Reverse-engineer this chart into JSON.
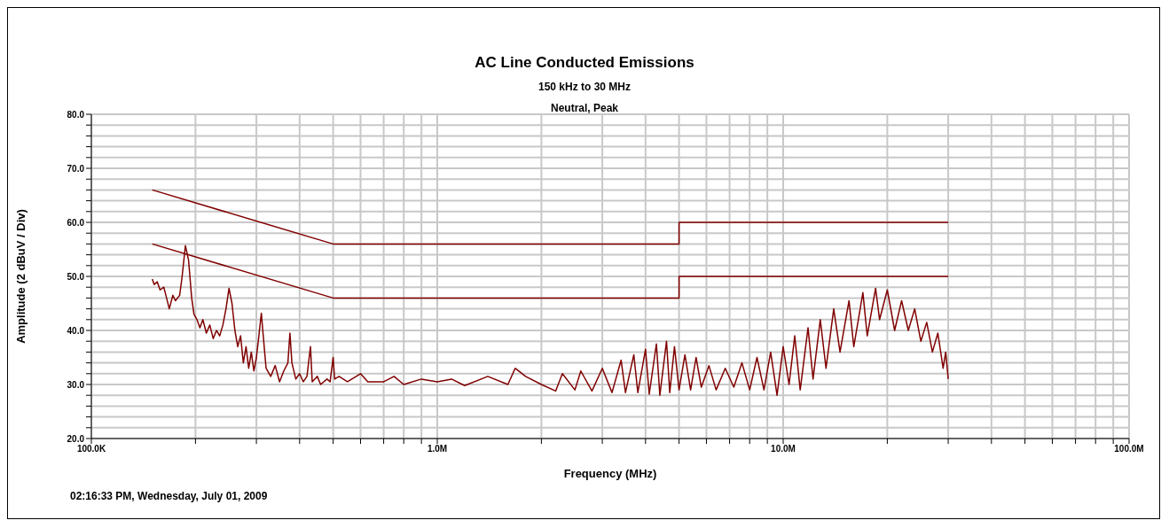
{
  "chart_data": {
    "type": "line",
    "title": "AC Line Conducted Emissions",
    "subtitle": "150 kHz to 30 MHz",
    "xlabel": "Frequency (MHz)",
    "ylabel": "Amplitude (2 dBuV / Div)",
    "annotations": [
      "Neutral, Peak",
      "02:16:33 PM, Wednesday, July 01, 2009"
    ],
    "log": "x",
    "grid": true,
    "marker": "none",
    "line_style": "solid",
    "xlim": [
      100000,
      100000000
    ],
    "ylim": [
      20,
      80
    ],
    "xticks": [
      {
        "value": 100000,
        "label": "100.0K"
      },
      {
        "value": 200000,
        "label": null
      },
      {
        "value": 300000,
        "label": null
      },
      {
        "value": 400000,
        "label": null
      },
      {
        "value": 500000,
        "label": null
      },
      {
        "value": 600000,
        "label": null
      },
      {
        "value": 700000,
        "label": null
      },
      {
        "value": 800000,
        "label": null
      },
      {
        "value": 900000,
        "label": null
      },
      {
        "value": 1000000,
        "label": "1.0M"
      },
      {
        "value": 2000000,
        "label": null
      },
      {
        "value": 3000000,
        "label": null
      },
      {
        "value": 4000000,
        "label": null
      },
      {
        "value": 5000000,
        "label": null
      },
      {
        "value": 6000000,
        "label": null
      },
      {
        "value": 7000000,
        "label": null
      },
      {
        "value": 8000000,
        "label": null
      },
      {
        "value": 9000000,
        "label": null
      },
      {
        "value": 10000000,
        "label": "10.0M"
      },
      {
        "value": 20000000,
        "label": null
      },
      {
        "value": 30000000,
        "label": null
      },
      {
        "value": 40000000,
        "label": null
      },
      {
        "value": 50000000,
        "label": null
      },
      {
        "value": 60000000,
        "label": null
      },
      {
        "value": 70000000,
        "label": null
      },
      {
        "value": 80000000,
        "label": null
      },
      {
        "value": 90000000,
        "label": null
      },
      {
        "value": 100000000,
        "label": "100.0M"
      }
    ],
    "yticks": [
      {
        "value": 20,
        "label": "20.0"
      },
      {
        "value": 22,
        "label": null
      },
      {
        "value": 24,
        "label": null
      },
      {
        "value": 26,
        "label": null
      },
      {
        "value": 28,
        "label": null
      },
      {
        "value": 30,
        "label": "30.0"
      },
      {
        "value": 32,
        "label": null
      },
      {
        "value": 34,
        "label": null
      },
      {
        "value": 36,
        "label": null
      },
      {
        "value": 38,
        "label": null
      },
      {
        "value": 40,
        "label": "40.0"
      },
      {
        "value": 42,
        "label": null
      },
      {
        "value": 44,
        "label": null
      },
      {
        "value": 46,
        "label": null
      },
      {
        "value": 48,
        "label": null
      },
      {
        "value": 50,
        "label": "50.0"
      },
      {
        "value": 52,
        "label": null
      },
      {
        "value": 54,
        "label": null
      },
      {
        "value": 56,
        "label": null
      },
      {
        "value": 58,
        "label": null
      },
      {
        "value": 60,
        "label": "60.0"
      },
      {
        "value": 62,
        "label": null
      },
      {
        "value": 64,
        "label": null
      },
      {
        "value": 66,
        "label": null
      },
      {
        "value": 68,
        "label": null
      },
      {
        "value": 70,
        "label": "70.0"
      },
      {
        "value": 72,
        "label": null
      },
      {
        "value": 74,
        "label": null
      },
      {
        "value": 76,
        "label": null
      },
      {
        "value": 78,
        "label": null
      },
      {
        "value": 80,
        "label": "80.0"
      }
    ],
    "series": [
      {
        "color": "#800000",
        "x": [
          150000,
          500000,
          5000000,
          5000000,
          30000000
        ],
        "values": [
          66,
          56,
          56,
          60,
          60
        ]
      },
      {
        "color": "#800000",
        "x": [
          150000,
          500000,
          5000000,
          5000000,
          30000000
        ],
        "values": [
          56,
          46,
          46,
          50,
          50
        ]
      },
      {
        "color": "#800000",
        "x": [
          150000,
          152000,
          155000,
          158000,
          162000,
          165000,
          168000,
          172000,
          175000,
          180000,
          183000,
          187000,
          191000,
          195000,
          198000,
          202000,
          206000,
          210000,
          215000,
          220000,
          225000,
          230000,
          235000,
          240000,
          245000,
          250000,
          255000,
          260000,
          265000,
          270000,
          275000,
          280000,
          285000,
          290000,
          295000,
          300000,
          305000,
          310000,
          315000,
          320000,
          330000,
          340000,
          350000,
          360000,
          370000,
          375000,
          380000,
          390000,
          400000,
          410000,
          420000,
          430000,
          435000,
          450000,
          460000,
          480000,
          490000,
          500000,
          505000,
          520000,
          550000,
          600000,
          630000,
          700000,
          750000,
          800000,
          900000,
          1000000,
          1100000,
          1200000,
          1400000,
          1600000,
          1680000,
          1800000,
          2000000,
          2200000,
          2300000,
          2500000,
          2600000,
          2800000,
          3000000,
          3200000,
          3400000,
          3500000,
          3700000,
          3800000,
          4000000,
          4100000,
          4300000,
          4400000,
          4600000,
          4700000,
          4850000,
          5000000,
          5200000,
          5400000,
          5600000,
          5800000,
          6100000,
          6400000,
          6800000,
          7200000,
          7600000,
          8000000,
          8400000,
          8800000,
          9200000,
          9600000,
          10000000,
          10400000,
          10800000,
          11200000,
          11800000,
          12200000,
          12800000,
          13300000,
          14000000,
          14600000,
          15500000,
          16000000,
          17000000,
          17500000,
          18500000,
          19000000,
          20000000,
          21000000,
          22000000,
          23000000,
          24000000,
          25000000,
          26000000,
          27000000,
          28000000,
          29000000,
          29500000,
          30000000
        ],
        "values": [
          49.5,
          48.5,
          49,
          47.5,
          48,
          46,
          44,
          46.5,
          45.5,
          46.5,
          50,
          55.7,
          53,
          46,
          43,
          42,
          40.5,
          42,
          39.5,
          41,
          38.5,
          40,
          39,
          41,
          44,
          47.8,
          45,
          40,
          37,
          39,
          34,
          37,
          33,
          36,
          32.5,
          35,
          39,
          43.2,
          38,
          33,
          31.5,
          33.5,
          30.5,
          32.5,
          34,
          39.5,
          34,
          31,
          32,
          30.5,
          31.5,
          37,
          30.5,
          31.5,
          30,
          31,
          30.5,
          35,
          31,
          31.5,
          30.5,
          32,
          30.5,
          30.5,
          31.5,
          30,
          31,
          30.5,
          31,
          29.8,
          31.5,
          30,
          33,
          31.5,
          30,
          28.8,
          32,
          29,
          32.5,
          28.8,
          33,
          28.5,
          34.5,
          28.5,
          35.5,
          28.5,
          36.5,
          28.2,
          37.5,
          28,
          38,
          28.5,
          37,
          29,
          35.5,
          29,
          35,
          29.5,
          33.5,
          29,
          33,
          29.5,
          34,
          29,
          35,
          29,
          36,
          28,
          37,
          30,
          39,
          29,
          40.5,
          31,
          42,
          33,
          44,
          36,
          45.5,
          37,
          47,
          39,
          47.8,
          42,
          47.5,
          40,
          45.5,
          40,
          44,
          38,
          41.5,
          36,
          39.5,
          33,
          36,
          31
        ]
      }
    ]
  }
}
